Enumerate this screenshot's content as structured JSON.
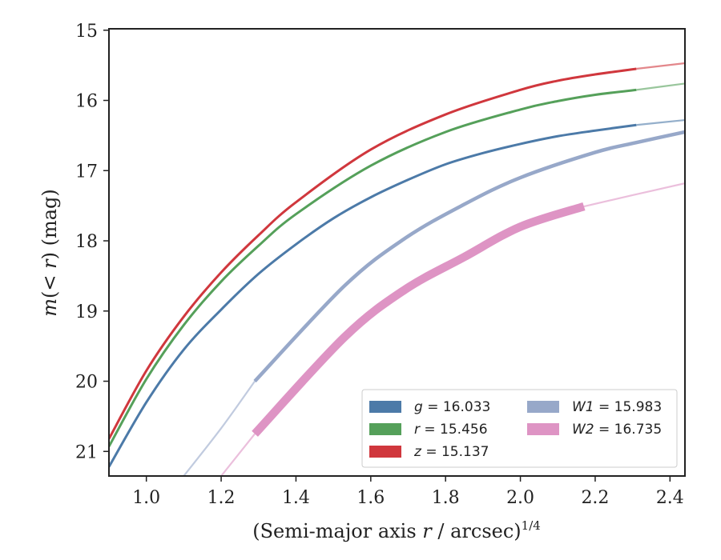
{
  "chart_data": {
    "type": "line",
    "xlabel": "(Semi-major axis r / arcsec)",
    "xlabel_var": "r",
    "xlabel_exp": "1/4",
    "ylabel": "m(< r) (mag)",
    "xlim": [
      0.9,
      2.44
    ],
    "ylim": [
      21.35,
      14.98
    ],
    "y_inverted": true,
    "xticks": [
      1.0,
      1.2,
      1.4,
      1.6,
      1.8,
      2.0,
      2.2,
      2.4
    ],
    "xtick_labels": [
      "1.0",
      "1.2",
      "1.4",
      "1.6",
      "1.8",
      "2.0",
      "2.2",
      "2.4"
    ],
    "yticks": [
      15,
      16,
      17,
      18,
      19,
      20,
      21
    ],
    "ytick_labels": [
      "15",
      "16",
      "17",
      "18",
      "19",
      "20",
      "21"
    ],
    "legend_position": "lower-right",
    "legend_columns": 2,
    "grid": false,
    "series": [
      {
        "name": "g",
        "total": "16.033",
        "color": "#4c7aa8",
        "band_width": 1.5,
        "solid_until": 2.31,
        "points": [
          [
            0.9,
            21.22
          ],
          [
            1.0,
            20.3
          ],
          [
            1.1,
            19.55
          ],
          [
            1.2,
            18.98
          ],
          [
            1.3,
            18.47
          ],
          [
            1.4,
            18.05
          ],
          [
            1.5,
            17.68
          ],
          [
            1.6,
            17.38
          ],
          [
            1.7,
            17.13
          ],
          [
            1.8,
            16.91
          ],
          [
            1.9,
            16.75
          ],
          [
            2.0,
            16.62
          ],
          [
            2.1,
            16.51
          ],
          [
            2.2,
            16.43
          ],
          [
            2.31,
            16.35
          ],
          [
            2.44,
            16.28
          ]
        ]
      },
      {
        "name": "r",
        "total": "15.456",
        "color": "#55a05a",
        "band_width": 1.5,
        "solid_until": 2.31,
        "points": [
          [
            0.9,
            20.93
          ],
          [
            1.0,
            19.97
          ],
          [
            1.1,
            19.2
          ],
          [
            1.2,
            18.58
          ],
          [
            1.3,
            18.07
          ],
          [
            1.4,
            17.62
          ],
          [
            1.6,
            16.93
          ],
          [
            1.8,
            16.45
          ],
          [
            2.0,
            16.13
          ],
          [
            2.1,
            16.01
          ],
          [
            2.2,
            15.92
          ],
          [
            2.31,
            15.85
          ],
          [
            2.44,
            15.76
          ]
        ]
      },
      {
        "name": "z",
        "total": "15.137",
        "color": "#d0373d",
        "band_width": 1.5,
        "solid_until": 2.31,
        "points": [
          [
            0.9,
            20.82
          ],
          [
            1.0,
            19.85
          ],
          [
            1.1,
            19.08
          ],
          [
            1.2,
            18.45
          ],
          [
            1.3,
            17.92
          ],
          [
            1.4,
            17.45
          ],
          [
            1.6,
            16.7
          ],
          [
            1.8,
            16.2
          ],
          [
            2.0,
            15.85
          ],
          [
            2.1,
            15.72
          ],
          [
            2.2,
            15.63
          ],
          [
            2.31,
            15.55
          ],
          [
            2.44,
            15.47
          ]
        ]
      },
      {
        "name": "W1",
        "total": "15.983",
        "color": "#97a8c9",
        "band_width": 3,
        "solid_from": 1.29,
        "solid_until": 2.44,
        "points": [
          [
            1.1,
            21.35
          ],
          [
            1.2,
            20.67
          ],
          [
            1.29,
            20.0
          ],
          [
            1.53,
            18.64
          ],
          [
            1.69,
            17.97
          ],
          [
            1.85,
            17.48
          ],
          [
            2.0,
            17.1
          ],
          [
            2.2,
            16.74
          ],
          [
            2.31,
            16.6
          ],
          [
            2.44,
            16.45
          ]
        ]
      },
      {
        "name": "W2",
        "total": "16.735",
        "color": "#de94c4",
        "band_width": 9,
        "solid_from": 1.29,
        "solid_until": 2.17,
        "points": [
          [
            1.2,
            21.35
          ],
          [
            1.29,
            20.75
          ],
          [
            1.53,
            19.37
          ],
          [
            1.69,
            18.7
          ],
          [
            1.85,
            18.23
          ],
          [
            2.0,
            17.8
          ],
          [
            2.17,
            17.51
          ],
          [
            2.3,
            17.35
          ],
          [
            2.44,
            17.18
          ]
        ]
      }
    ]
  }
}
